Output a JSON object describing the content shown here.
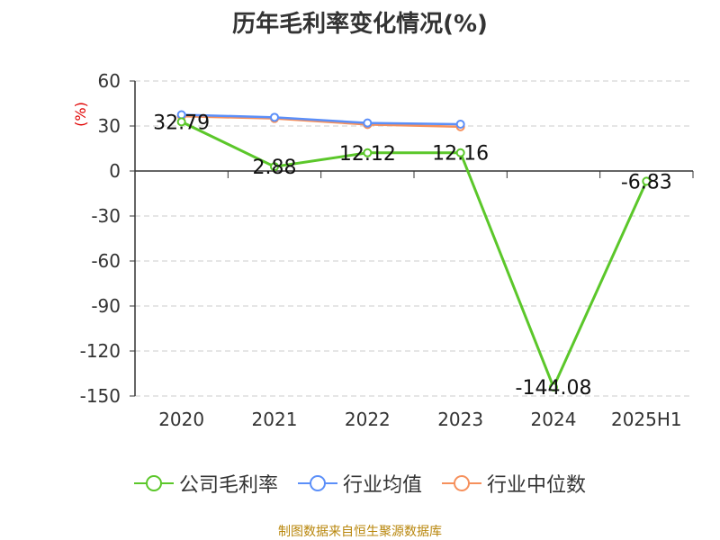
{
  "title": "历年毛利率变化情况(%)",
  "source": "制图数据来自恒生聚源数据库",
  "colors": {
    "company": "#5bc72a",
    "industry_avg": "#5b8ff9",
    "industry_median": "#f6905c",
    "grid": "#cccccc",
    "axis": "#333333",
    "ylabel": "#e00000"
  },
  "chart_data": {
    "type": "line",
    "categories": [
      "2020",
      "2021",
      "2022",
      "2023",
      "2024",
      "2025H1"
    ],
    "ylabel": "(%)",
    "ylim": [
      -150,
      60
    ],
    "yticks": [
      60,
      30,
      0,
      -30,
      -60,
      -90,
      -120,
      -150
    ],
    "grid": "horizontal-dashed",
    "legend_position": "bottom",
    "series": [
      {
        "name": "公司毛利率",
        "values": [
          32.79,
          2.88,
          12.12,
          12.16,
          -144.08,
          -6.83
        ],
        "labels": [
          "32.79",
          "2.88",
          "12.12",
          "12.16",
          "-144.08",
          "-6.83"
        ]
      },
      {
        "name": "行业均值",
        "values": [
          37.5,
          35.8,
          32.0,
          31.2,
          null,
          null
        ]
      },
      {
        "name": "行业中位数",
        "values": [
          36.5,
          35.0,
          31.0,
          29.5,
          null,
          null
        ]
      }
    ]
  }
}
